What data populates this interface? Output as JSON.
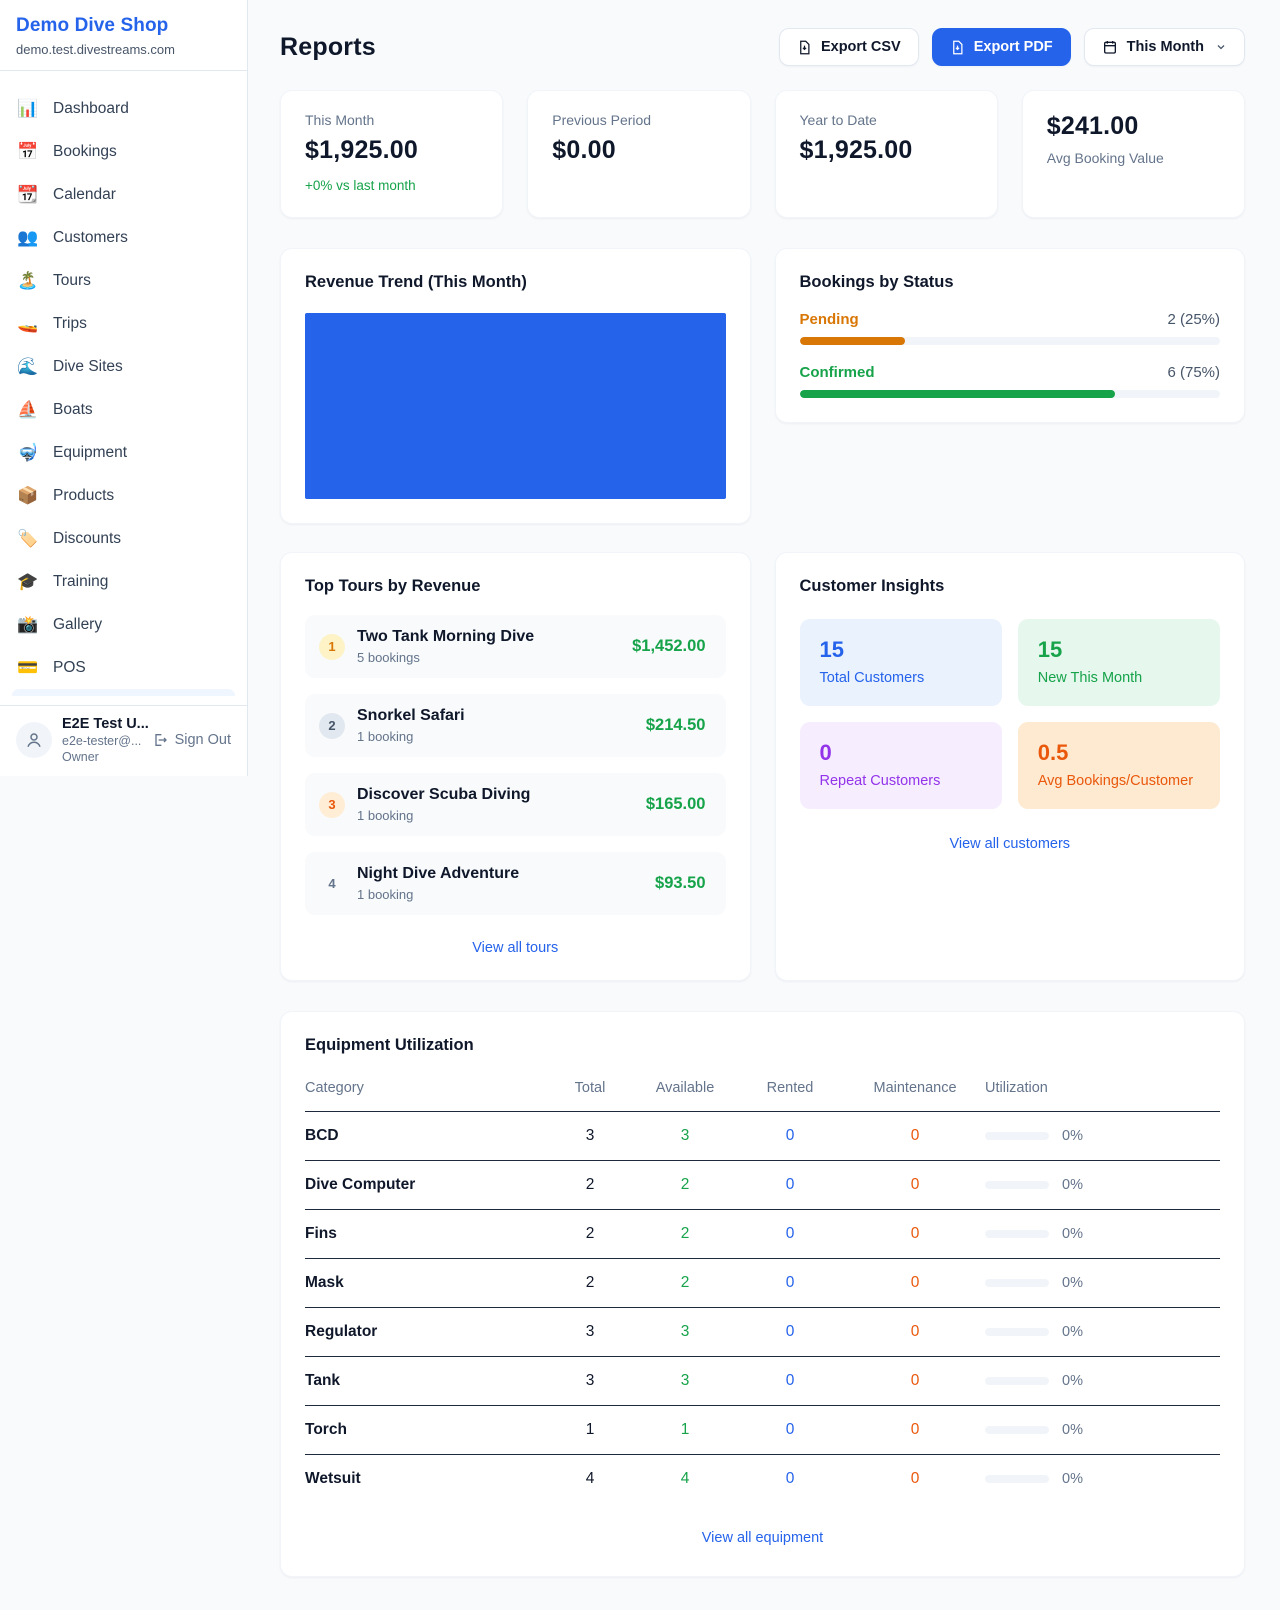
{
  "sidebar": {
    "shop_name": "Demo Dive Shop",
    "domain": "demo.test.divestreams.com",
    "items": [
      {
        "label": "Dashboard",
        "icon": "📊",
        "icon_name": "bar-chart-icon"
      },
      {
        "label": "Bookings",
        "icon": "📅",
        "icon_name": "calendar-icon"
      },
      {
        "label": "Calendar",
        "icon": "📆",
        "icon_name": "tear-off-calendar-icon"
      },
      {
        "label": "Customers",
        "icon": "👥",
        "icon_name": "people-icon"
      },
      {
        "label": "Tours",
        "icon": "🏝️",
        "icon_name": "island-icon"
      },
      {
        "label": "Trips",
        "icon": "🚤",
        "icon_name": "speedboat-icon"
      },
      {
        "label": "Dive Sites",
        "icon": "🌊",
        "icon_name": "wave-icon"
      },
      {
        "label": "Boats",
        "icon": "⛵",
        "icon_name": "sailboat-icon"
      },
      {
        "label": "Equipment",
        "icon": "🤿",
        "icon_name": "diving-mask-icon"
      },
      {
        "label": "Products",
        "icon": "📦",
        "icon_name": "package-icon"
      },
      {
        "label": "Discounts",
        "icon": "🏷️",
        "icon_name": "tag-icon"
      },
      {
        "label": "Training",
        "icon": "🎓",
        "icon_name": "graduation-cap-icon"
      },
      {
        "label": "Gallery",
        "icon": "📸",
        "icon_name": "camera-icon"
      },
      {
        "label": "POS",
        "icon": "💳",
        "icon_name": "credit-card-icon"
      }
    ],
    "user": {
      "name": "E2E Test U...",
      "email": "e2e-tester@...",
      "role": "Owner",
      "sign_out_label": "Sign Out"
    }
  },
  "header": {
    "title": "Reports",
    "export_csv_label": "Export CSV",
    "export_pdf_label": "Export PDF",
    "period_label": "This Month"
  },
  "stats": [
    {
      "label": "This Month",
      "value": "$1,925.00",
      "delta": "+0% vs last month"
    },
    {
      "label": "Previous Period",
      "value": "$0.00"
    },
    {
      "label": "Year to Date",
      "value": "$1,925.00"
    },
    {
      "label": "Avg Booking Value",
      "value": "$241.00",
      "value_first": true
    }
  ],
  "revenue_trend": {
    "title": "Revenue Trend (This Month)",
    "chart": {
      "type": "area",
      "fill_color": "#2563eb",
      "note": "solid filled plot area, no axis labels visible"
    }
  },
  "bookings_by_status": {
    "title": "Bookings by Status",
    "statuses": [
      {
        "label": "Pending",
        "count_text": "2 (25%)",
        "pct": 25,
        "color": "#d97706"
      },
      {
        "label": "Confirmed",
        "count_text": "6 (75%)",
        "pct": 75,
        "color": "#16a34a"
      }
    ]
  },
  "top_tours": {
    "title": "Top Tours by Revenue",
    "tours": [
      {
        "rank": "1",
        "name": "Two Tank Morning Dive",
        "bookings": "5 bookings",
        "amount": "$1,452.00",
        "rank_bg": "#fef3c7",
        "rank_color": "#d97706"
      },
      {
        "rank": "2",
        "name": "Snorkel Safari",
        "bookings": "1 booking",
        "amount": "$214.50",
        "rank_bg": "#e2e8f0",
        "rank_color": "#475569"
      },
      {
        "rank": "3",
        "name": "Discover Scuba Diving",
        "bookings": "1 booking",
        "amount": "$165.00",
        "rank_bg": "#ffedd5",
        "rank_color": "#ea580c"
      },
      {
        "rank": "4",
        "name": "Night Dive Adventure",
        "bookings": "1 booking",
        "amount": "$93.50",
        "rank_bg": "transparent",
        "rank_color": "#64748b"
      }
    ],
    "view_all_label": "View all tours"
  },
  "customer_insights": {
    "title": "Customer Insights",
    "tiles": [
      {
        "value": "15",
        "label": "Total Customers",
        "bg": "#eaf2fe",
        "color": "#2563eb"
      },
      {
        "value": "15",
        "label": "New This Month",
        "bg": "#e6f7ee",
        "color": "#16a34a"
      },
      {
        "value": "0",
        "label": "Repeat Customers",
        "bg": "#f6edfe",
        "color": "#9333ea"
      },
      {
        "value": "0.5",
        "label": "Avg Bookings/Customer",
        "bg": "#fdead1",
        "color": "#ea580c"
      }
    ],
    "view_all_label": "View all customers"
  },
  "equipment": {
    "title": "Equipment Utilization",
    "columns": [
      "Category",
      "Total",
      "Available",
      "Rented",
      "Maintenance",
      "Utilization"
    ],
    "rows": [
      {
        "category": "BCD",
        "total": "3",
        "available": "3",
        "rented": "0",
        "maintenance": "0",
        "utilization_pct": 0,
        "utilization_text": "0%"
      },
      {
        "category": "Dive Computer",
        "total": "2",
        "available": "2",
        "rented": "0",
        "maintenance": "0",
        "utilization_pct": 0,
        "utilization_text": "0%"
      },
      {
        "category": "Fins",
        "total": "2",
        "available": "2",
        "rented": "0",
        "maintenance": "0",
        "utilization_pct": 0,
        "utilization_text": "0%"
      },
      {
        "category": "Mask",
        "total": "2",
        "available": "2",
        "rented": "0",
        "maintenance": "0",
        "utilization_pct": 0,
        "utilization_text": "0%"
      },
      {
        "category": "Regulator",
        "total": "3",
        "available": "3",
        "rented": "0",
        "maintenance": "0",
        "utilization_pct": 0,
        "utilization_text": "0%"
      },
      {
        "category": "Tank",
        "total": "3",
        "available": "3",
        "rented": "0",
        "maintenance": "0",
        "utilization_pct": 0,
        "utilization_text": "0%"
      },
      {
        "category": "Torch",
        "total": "1",
        "available": "1",
        "rented": "0",
        "maintenance": "0",
        "utilization_pct": 0,
        "utilization_text": "0%"
      },
      {
        "category": "Wetsuit",
        "total": "4",
        "available": "4",
        "rented": "0",
        "maintenance": "0",
        "utilization_pct": 0,
        "utilization_text": "0%"
      }
    ],
    "view_all_label": "View all equipment"
  }
}
